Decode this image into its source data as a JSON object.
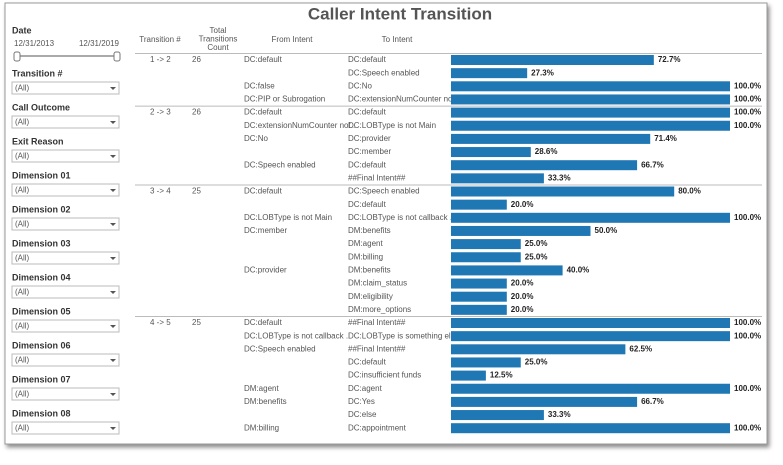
{
  "title": "Caller Intent Transition",
  "filters": {
    "date": {
      "label": "Date",
      "start": "12/31/2013",
      "end": "12/31/2019"
    },
    "dropdowns": [
      {
        "label": "Transition #",
        "value": "(All)"
      },
      {
        "label": "Call Outcome",
        "value": "(All)"
      },
      {
        "label": "Exit Reason",
        "value": "(All)"
      },
      {
        "label": "Dimension 01",
        "value": "(All)"
      },
      {
        "label": "Dimension 02",
        "value": "(All)"
      },
      {
        "label": "Dimension 03",
        "value": "(All)"
      },
      {
        "label": "Dimension 04",
        "value": "(All)"
      },
      {
        "label": "Dimension 05",
        "value": "(All)"
      },
      {
        "label": "Dimension 06",
        "value": "(All)"
      },
      {
        "label": "Dimension 07",
        "value": "(All)"
      },
      {
        "label": "Dimension 08",
        "value": "(All)"
      }
    ]
  },
  "table": {
    "headers": {
      "transition": "Transition #",
      "count": [
        "Total",
        "Transitions",
        "Count"
      ],
      "from": "From Intent",
      "to": "To Intent"
    },
    "groups": [
      {
        "transition": "1 -> 2",
        "count": 26,
        "from": [
          {
            "intent": "DC:default",
            "to": [
              {
                "intent": "DC:default",
                "percent": 72.7,
                "percent_label": "72.7%"
              },
              {
                "intent": "DC:Speech enabled",
                "percent": 27.3,
                "percent_label": "27.3%"
              }
            ]
          },
          {
            "intent": "DC:false",
            "to": [
              {
                "intent": "DC:No",
                "percent": 100.0,
                "percent_label": "100.0%"
              }
            ]
          },
          {
            "intent": "DC:PIP or Subrogation",
            "to": [
              {
                "intent": "DC:extensionNumCounter not..",
                "percent": 100.0,
                "percent_label": "100.0%"
              }
            ]
          }
        ]
      },
      {
        "transition": "2 -> 3",
        "count": 26,
        "from": [
          {
            "intent": "DC:default",
            "to": [
              {
                "intent": "DC:default",
                "percent": 100.0,
                "percent_label": "100.0%"
              }
            ]
          },
          {
            "intent": "DC:extensionNumCounter not..",
            "to": [
              {
                "intent": "DC:LOBType is not Main",
                "percent": 100.0,
                "percent_label": "100.0%"
              }
            ]
          },
          {
            "intent": "DC:No",
            "to": [
              {
                "intent": "DC:provider",
                "percent": 71.4,
                "percent_label": "71.4%"
              },
              {
                "intent": "DC:member",
                "percent": 28.6,
                "percent_label": "28.6%"
              }
            ]
          },
          {
            "intent": "DC:Speech enabled",
            "to": [
              {
                "intent": "DC:default",
                "percent": 66.7,
                "percent_label": "66.7%"
              },
              {
                "intent": "##Final Intent##",
                "percent": 33.3,
                "percent_label": "33.3%"
              }
            ]
          }
        ]
      },
      {
        "transition": "3 -> 4",
        "count": 25,
        "from": [
          {
            "intent": "DC:default",
            "to": [
              {
                "intent": "DC:Speech enabled",
                "percent": 80.0,
                "percent_label": "80.0%"
              },
              {
                "intent": "DC:default",
                "percent": 20.0,
                "percent_label": "20.0%"
              }
            ]
          },
          {
            "intent": "DC:LOBType is not Main",
            "to": [
              {
                "intent": "DC:LOBType is not callback ..",
                "percent": 100.0,
                "percent_label": "100.0%"
              }
            ]
          },
          {
            "intent": "DC:member",
            "to": [
              {
                "intent": "DM:benefits",
                "percent": 50.0,
                "percent_label": "50.0%"
              },
              {
                "intent": "DM:agent",
                "percent": 25.0,
                "percent_label": "25.0%"
              },
              {
                "intent": "DM:billing",
                "percent": 25.0,
                "percent_label": "25.0%"
              }
            ]
          },
          {
            "intent": "DC:provider",
            "to": [
              {
                "intent": "DM:benefits",
                "percent": 40.0,
                "percent_label": "40.0%"
              },
              {
                "intent": "DM:claim_status",
                "percent": 20.0,
                "percent_label": "20.0%"
              },
              {
                "intent": "DM:eligibility",
                "percent": 20.0,
                "percent_label": "20.0%"
              },
              {
                "intent": "DM:more_options",
                "percent": 20.0,
                "percent_label": "20.0%"
              }
            ]
          }
        ]
      },
      {
        "transition": "4 -> 5",
        "count": 25,
        "from": [
          {
            "intent": "DC:default",
            "to": [
              {
                "intent": "##Final Intent##",
                "percent": 100.0,
                "percent_label": "100.0%"
              }
            ]
          },
          {
            "intent": "DC:LOBType is not callback ..",
            "to": [
              {
                "intent": "DC:LOBType is something else",
                "percent": 100.0,
                "percent_label": "100.0%"
              }
            ]
          },
          {
            "intent": "DC:Speech enabled",
            "to": [
              {
                "intent": "##Final Intent##",
                "percent": 62.5,
                "percent_label": "62.5%"
              },
              {
                "intent": "DC:default",
                "percent": 25.0,
                "percent_label": "25.0%"
              },
              {
                "intent": "DC:insufficient funds",
                "percent": 12.5,
                "percent_label": "12.5%"
              }
            ]
          },
          {
            "intent": "DM:agent",
            "to": [
              {
                "intent": "DC:agent",
                "percent": 100.0,
                "percent_label": "100.0%"
              }
            ]
          },
          {
            "intent": "DM:benefits",
            "to": [
              {
                "intent": "DC:Yes",
                "percent": 66.7,
                "percent_label": "66.7%"
              },
              {
                "intent": "DC:else",
                "percent": 33.3,
                "percent_label": "33.3%"
              }
            ]
          },
          {
            "intent": "DM:billing",
            "to": [
              {
                "intent": "DC:appointment",
                "percent": 100.0,
                "percent_label": "100.0%"
              }
            ]
          }
        ]
      }
    ]
  }
}
